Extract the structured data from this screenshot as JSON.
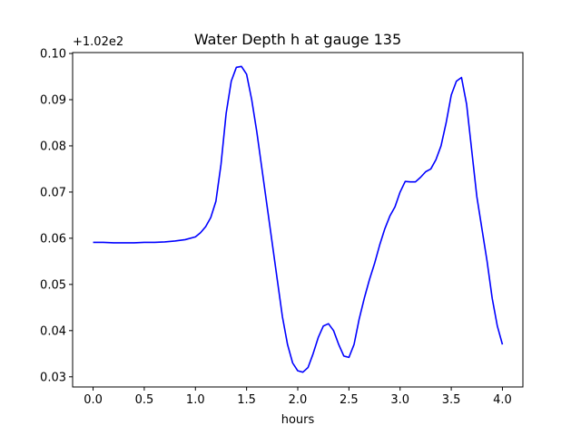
{
  "chart_data": {
    "type": "line",
    "title": "Water Depth h at gauge 135",
    "xlabel": "hours",
    "ylabel": "",
    "y_offset_label": "+1.02e2",
    "xlim": [
      -0.2,
      4.2
    ],
    "ylim": [
      0.0278,
      0.1002
    ],
    "xticks": [
      0.0,
      0.5,
      1.0,
      1.5,
      2.0,
      2.5,
      3.0,
      3.5,
      4.0
    ],
    "xtick_labels": [
      "0.0",
      "0.5",
      "1.0",
      "1.5",
      "2.0",
      "2.5",
      "3.0",
      "3.5",
      "4.0"
    ],
    "yticks": [
      0.03,
      0.04,
      0.05,
      0.06,
      0.07,
      0.08,
      0.09,
      0.1
    ],
    "ytick_labels": [
      "0.03",
      "0.04",
      "0.05",
      "0.06",
      "0.07",
      "0.08",
      "0.09",
      "0.10"
    ],
    "grid": false,
    "series": [
      {
        "color": "#0000ff",
        "x": [
          0.0,
          0.1,
          0.2,
          0.3,
          0.4,
          0.5,
          0.6,
          0.7,
          0.8,
          0.9,
          1.0,
          1.05,
          1.1,
          1.15,
          1.2,
          1.25,
          1.3,
          1.35,
          1.4,
          1.45,
          1.5,
          1.55,
          1.6,
          1.65,
          1.7,
          1.75,
          1.8,
          1.85,
          1.9,
          1.95,
          2.0,
          2.05,
          2.1,
          2.15,
          2.2,
          2.25,
          2.3,
          2.35,
          2.4,
          2.45,
          2.5,
          2.55,
          2.6,
          2.65,
          2.7,
          2.75,
          2.8,
          2.85,
          2.9,
          2.95,
          3.0,
          3.05,
          3.1,
          3.15,
          3.2,
          3.25,
          3.3,
          3.35,
          3.4,
          3.45,
          3.5,
          3.55,
          3.6,
          3.65,
          3.7,
          3.75,
          3.8,
          3.85,
          3.9,
          3.95,
          4.0
        ],
        "y": [
          0.0591,
          0.0591,
          0.059,
          0.059,
          0.059,
          0.0591,
          0.0591,
          0.0592,
          0.0594,
          0.0597,
          0.0603,
          0.0612,
          0.0625,
          0.0645,
          0.068,
          0.076,
          0.087,
          0.094,
          0.097,
          0.0972,
          0.0955,
          0.09,
          0.083,
          0.075,
          0.067,
          0.059,
          0.051,
          0.043,
          0.037,
          0.033,
          0.0313,
          0.031,
          0.032,
          0.035,
          0.0385,
          0.041,
          0.0415,
          0.04,
          0.037,
          0.0345,
          0.0342,
          0.037,
          0.0425,
          0.047,
          0.051,
          0.0545,
          0.0585,
          0.062,
          0.0648,
          0.0668,
          0.07,
          0.0723,
          0.0722,
          0.0722,
          0.0732,
          0.0744,
          0.075,
          0.077,
          0.08,
          0.085,
          0.091,
          0.094,
          0.0948,
          0.089,
          0.079,
          0.069,
          0.062,
          0.055,
          0.047,
          0.041,
          0.037
        ]
      }
    ]
  }
}
